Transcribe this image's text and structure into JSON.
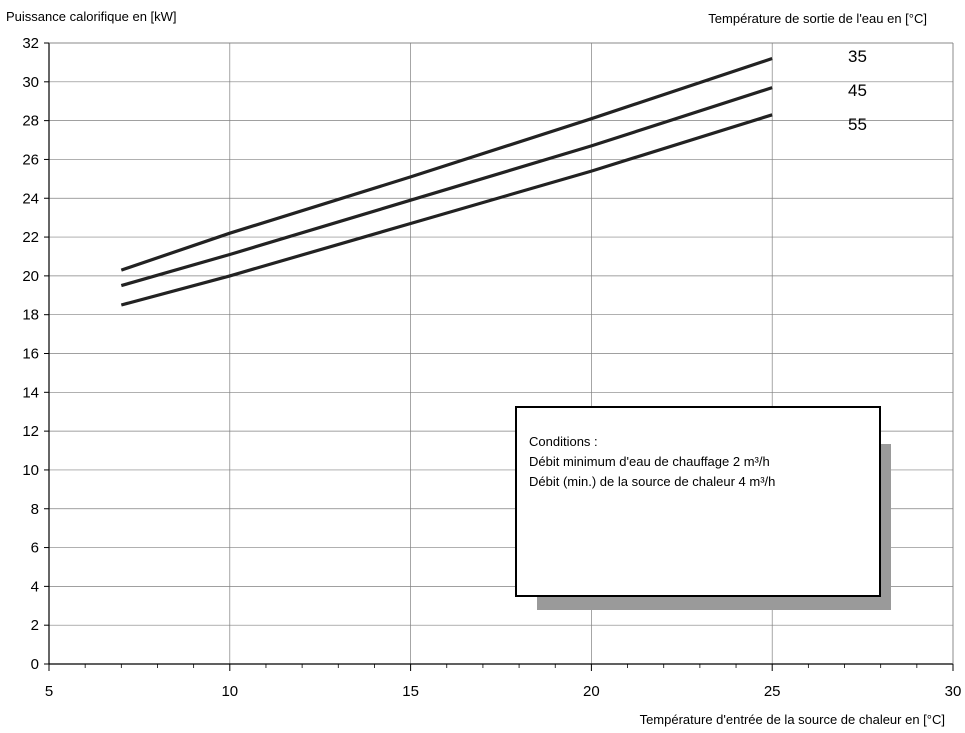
{
  "chart_data": {
    "type": "line",
    "ylabel": "Puissance calorifique en [kW]",
    "xlabel": "Température d'entrée de la source de chaleur en [°C]",
    "legend_title": "Température de sortie de l'eau en [°C]",
    "xlim": [
      5,
      30
    ],
    "ylim": [
      0,
      32
    ],
    "x_ticks": [
      "5",
      "10",
      "15",
      "20",
      "25",
      "30"
    ],
    "y_ticks": [
      "0",
      "2",
      "4",
      "6",
      "8",
      "10",
      "12",
      "14",
      "16",
      "18",
      "20",
      "22",
      "24",
      "26",
      "28",
      "30",
      "32"
    ],
    "grid": true,
    "legend_placement": "right, at line ends",
    "series": [
      {
        "name": "35",
        "x": [
          7,
          10,
          15,
          20,
          25
        ],
        "values": [
          20.3,
          22.2,
          25.1,
          28.1,
          31.2
        ]
      },
      {
        "name": "45",
        "x": [
          7,
          10,
          15,
          20,
          25
        ],
        "values": [
          19.5,
          21.1,
          23.9,
          26.7,
          29.7
        ]
      },
      {
        "name": "55",
        "x": [
          7,
          10,
          15,
          20,
          25
        ],
        "values": [
          18.5,
          20.0,
          22.7,
          25.4,
          28.3
        ]
      }
    ],
    "annotation": {
      "lines": [
        "Conditions :",
        "Débit minimum d'eau de chauffage 2 m³/h",
        "Débit (min.) de la source de chaleur 4 m³/h"
      ]
    },
    "line_color": "#222222",
    "grid_color": "#808080"
  }
}
